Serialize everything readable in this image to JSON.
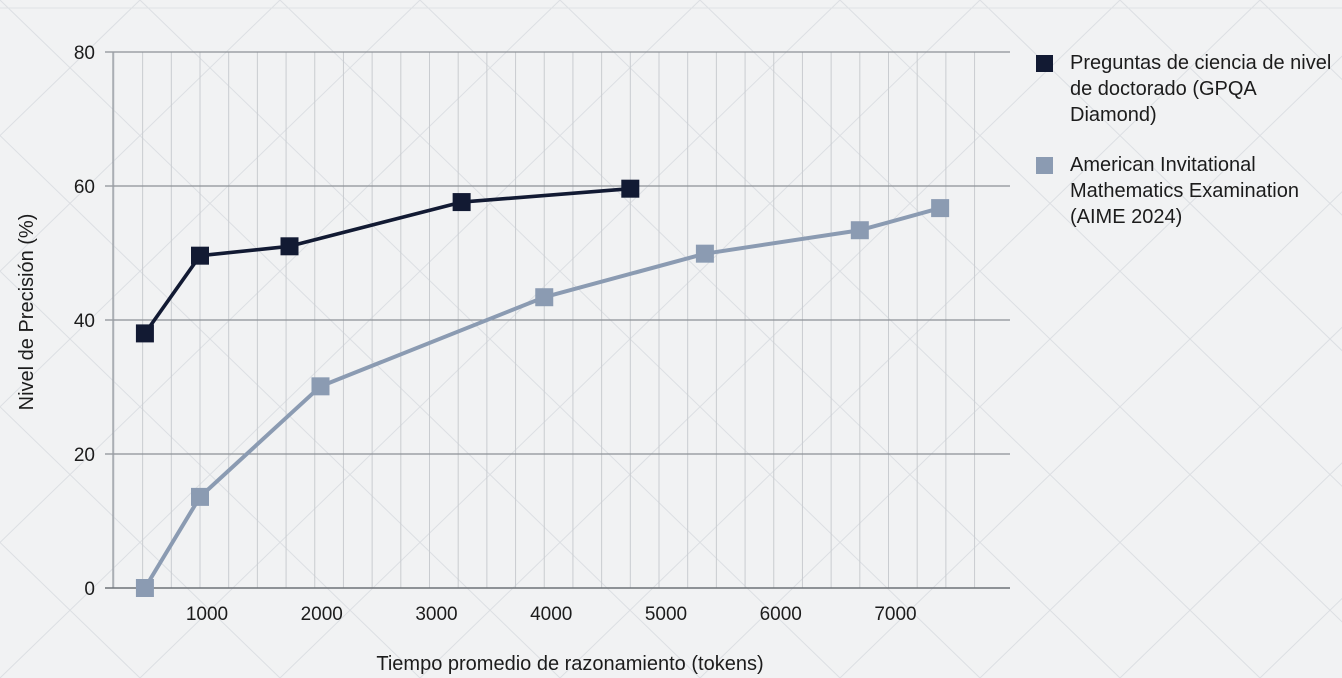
{
  "chart_data": {
    "type": "line",
    "xlabel": "Tiempo promedio de razonamiento (tokens)",
    "ylabel": "Nivel de Precisión (%)",
    "xlim": [
      0,
      8000
    ],
    "ylim": [
      0,
      80
    ],
    "x_ticks": [
      "1000",
      "2000",
      "3000",
      "4000",
      "5000",
      "6000",
      "7000"
    ],
    "y_ticks": [
      "0",
      "20",
      "40",
      "60",
      "80"
    ],
    "grid": true,
    "legend_position": "right",
    "series": [
      {
        "name": "Preguntas de ciencia de nivel de doctorado (GPQA Diamond)",
        "color": "#121a33",
        "marker": "square",
        "x": [
          520,
          1000,
          1780,
          3280,
          4750
        ],
        "y": [
          38,
          49.6,
          51,
          57.6,
          59.6
        ]
      },
      {
        "name": "American Invitational Mathematics Examination (AIME 2024)",
        "color": "#8b9bb2",
        "marker": "square",
        "x": [
          520,
          1000,
          2050,
          4000,
          5400,
          6750,
          7450
        ],
        "y": [
          0,
          13.6,
          30.1,
          43.4,
          49.9,
          53.4,
          56.7
        ]
      }
    ]
  }
}
